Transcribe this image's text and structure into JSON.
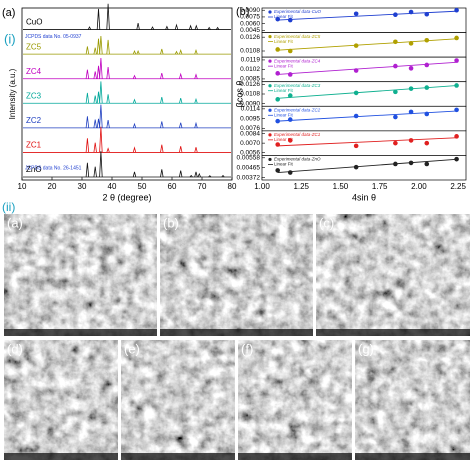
{
  "panel_i": "(i)",
  "panel_ii": "(ii)",
  "xrd": {
    "label": "(a)",
    "xlabel": "2 θ (degree)",
    "ylabel": "Intensity (a.u.)",
    "xlim": [
      10,
      80
    ],
    "xticks": [
      10,
      20,
      30,
      40,
      50,
      60,
      70,
      80
    ],
    "refs": [
      "JCPDS data No. 05-0937",
      "JCPDS data No. 26-1451"
    ],
    "patterns": [
      {
        "name": "CuO",
        "color": "#111111",
        "peaks_x": [
          32.5,
          35.5,
          38.7,
          48.7,
          53.5,
          58.3,
          61.5,
          66.2,
          68.1,
          72.4,
          75.2
        ],
        "peaks_h": [
          0.1,
          0.8,
          1.0,
          0.25,
          0.1,
          0.12,
          0.18,
          0.15,
          0.15,
          0.08,
          0.08
        ]
      },
      {
        "name": "ZC5",
        "color": "#9a9a00",
        "peaks_x": [
          31.8,
          34.4,
          35.5,
          36.3,
          38.7,
          47.5,
          48.7,
          56.6,
          61.5,
          62.9,
          68
        ],
        "peaks_h": [
          0.3,
          0.25,
          0.6,
          0.7,
          0.55,
          0.12,
          0.12,
          0.2,
          0.1,
          0.15,
          0.15
        ]
      },
      {
        "name": "ZC4",
        "color": "#c000c0",
        "peaks_x": [
          31.8,
          34.4,
          35.5,
          36.3,
          38.7,
          47.5,
          56.6,
          62.9,
          68
        ],
        "peaks_h": [
          0.35,
          0.28,
          0.5,
          0.8,
          0.45,
          0.12,
          0.22,
          0.18,
          0.16
        ]
      },
      {
        "name": "ZC3",
        "color": "#00a89a",
        "peaks_x": [
          31.8,
          34.4,
          35.5,
          36.3,
          38.7,
          47.5,
          56.6,
          62.9,
          68
        ],
        "peaks_h": [
          0.4,
          0.3,
          0.45,
          0.85,
          0.35,
          0.14,
          0.24,
          0.2,
          0.16
        ]
      },
      {
        "name": "ZC2",
        "color": "#2040c0",
        "peaks_x": [
          31.8,
          34.4,
          35.5,
          36.3,
          38.7,
          47.5,
          56.6,
          62.9,
          68
        ],
        "peaks_h": [
          0.45,
          0.32,
          0.35,
          0.9,
          0.3,
          0.15,
          0.25,
          0.2,
          0.18
        ]
      },
      {
        "name": "ZC1",
        "color": "#e01010",
        "peaks_x": [
          31.8,
          34.4,
          36.3,
          38.7,
          47.5,
          56.6,
          62.9,
          68
        ],
        "peaks_h": [
          0.55,
          0.38,
          1.0,
          0.15,
          0.18,
          0.3,
          0.24,
          0.2
        ]
      },
      {
        "name": "ZnO",
        "color": "#111111",
        "peaks_x": [
          31.8,
          34.4,
          36.3,
          47.5,
          56.6,
          62.9,
          66.4,
          68,
          69.1,
          72.6,
          77
        ],
        "peaks_h": [
          0.55,
          0.4,
          1.0,
          0.2,
          0.3,
          0.25,
          0.06,
          0.2,
          0.12,
          0.05,
          0.06
        ]
      }
    ]
  },
  "wh": {
    "label": "(b)",
    "xlabel": "4sin θ",
    "ylabel": "βcos θ",
    "xlim": [
      1.0,
      2.3
    ],
    "xticks": [
      {
        "value": 1,
        "label": "1.00"
      },
      1.25,
      {
        "value": 1.5,
        "label": "1.50"
      },
      1.75,
      {
        "value": 2,
        "label": "2.00"
      },
      2.25
    ],
    "x": [
      1.1,
      1.18,
      1.6,
      1.85,
      1.95,
      2.05,
      2.24
    ],
    "fit_x": [
      1.1,
      2.25
    ],
    "fit_name": "Linear Fit",
    "series": [
      {
        "name": "Experimental data-CuO",
        "color": "#1f3fd0",
        "ylim": [
          0.004,
          0.0095
        ],
        "yticks": [
          {
            "value": 0.009,
            "label": "0.0090"
          },
          {
            "value": 0.0075,
            "label": "0.0075"
          },
          {
            "value": 0.006,
            "label": "0.0060"
          },
          {
            "value": 0.0045,
            "label": "0.0045"
          }
        ],
        "values": [
          0.007,
          0.0068,
          0.0082,
          0.008,
          0.0086,
          0.0081,
          0.009
        ],
        "fit_y": [
          0.0068,
          0.0088
        ]
      },
      {
        "name": "Experimental data-ZC5",
        "color": "#b0a000",
        "ylim": [
          0.01,
          0.0132
        ],
        "yticks": [
          {
            "value": 0.0126,
            "label": "0.0126"
          },
          {
            "value": 0.0108,
            "label": "0.0108"
          }
        ],
        "values": [
          0.011,
          0.0108,
          0.0115,
          0.012,
          0.0118,
          0.0122,
          0.0125
        ],
        "fit_y": [
          0.0109,
          0.0124
        ]
      },
      {
        "name": "Experimental data-ZC4",
        "color": "#b020d0",
        "ylim": [
          0.008,
          0.0124
        ],
        "yticks": [
          {
            "value": 0.0119,
            "label": "0.0119"
          },
          {
            "value": 0.0102,
            "label": "0.0102"
          },
          {
            "value": 0.0085,
            "label": "0.0085"
          }
        ],
        "values": [
          0.0095,
          0.0093,
          0.01,
          0.0108,
          0.0104,
          0.011,
          0.0118
        ],
        "fit_y": [
          0.0093,
          0.0115
        ]
      },
      {
        "name": "Experimental data-ZC3",
        "color": "#10b090",
        "ylim": [
          0.0085,
          0.0131
        ],
        "yticks": [
          {
            "value": 0.0126,
            "label": "0.0126"
          },
          {
            "value": 0.0108,
            "label": "0.0108"
          },
          {
            "value": 0.009,
            "label": "0.0090"
          }
        ],
        "values": [
          0.0098,
          0.0105,
          0.011,
          0.0112,
          0.0118,
          0.012,
          0.0124
        ],
        "fit_y": [
          0.01,
          0.0124
        ]
      },
      {
        "name": "Experimental data-ZC2",
        "color": "#2050e0",
        "ylim": [
          0.0071,
          0.0119
        ],
        "yticks": [
          {
            "value": 0.0114,
            "label": "0.0114"
          },
          {
            "value": 0.0095,
            "label": "0.0095"
          },
          {
            "value": 0.0076,
            "label": "0.0076"
          }
        ],
        "values": [
          0.009,
          0.0093,
          0.01,
          0.0098,
          0.0108,
          0.0104,
          0.0112
        ],
        "fit_y": [
          0.009,
          0.011
        ]
      },
      {
        "name": "Experimental data-ZC1",
        "color": "#e02020",
        "ylim": [
          0.0052,
          0.0088
        ],
        "yticks": [
          {
            "value": 0.0084,
            "label": "0.0084"
          },
          {
            "value": 0.007,
            "label": "0.0070"
          },
          {
            "value": 0.0056,
            "label": "0.0056"
          }
        ],
        "values": [
          0.0068,
          0.0074,
          0.0066,
          0.007,
          0.0074,
          0.007,
          0.008
        ],
        "fit_y": [
          0.0066,
          0.0078
        ]
      },
      {
        "name": "Experimental data-ZnO",
        "color": "#222222",
        "ylim": [
          0.0035,
          0.0058
        ],
        "yticks": [
          {
            "value": 0.00558,
            "label": "0.00558"
          },
          {
            "value": 0.00465,
            "label": "0.00465"
          },
          {
            "value": 0.00372,
            "label": "0.00372"
          }
        ],
        "values": [
          0.0044,
          0.0042,
          0.0047,
          0.005,
          0.0051,
          0.005,
          0.00545
        ],
        "fit_y": [
          0.0042,
          0.00545
        ]
      }
    ]
  },
  "sem": {
    "labels": [
      "(a)",
      "(b)",
      "(c)",
      "(d)",
      "(e)",
      "(f)",
      "(g)"
    ]
  }
}
